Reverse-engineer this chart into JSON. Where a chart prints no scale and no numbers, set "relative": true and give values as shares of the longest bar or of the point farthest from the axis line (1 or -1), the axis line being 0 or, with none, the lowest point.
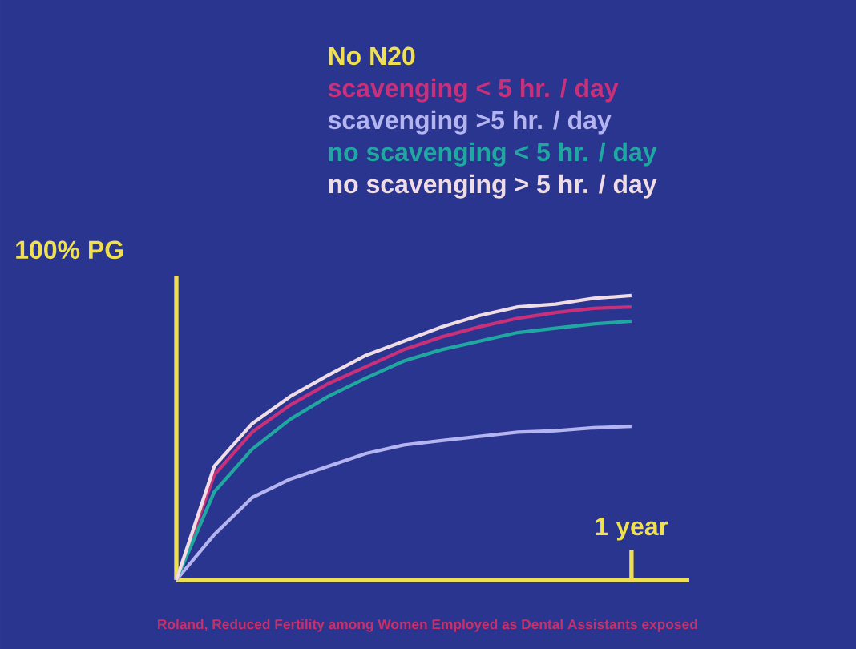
{
  "chart_data": {
    "type": "line",
    "relative": true,
    "ylabel": "100% PG",
    "categories": [
      null,
      null,
      null,
      null,
      null,
      null,
      null,
      null,
      null,
      null,
      null,
      null,
      null
    ],
    "series": [
      {
        "name": "scavenging < 5 hr. / day",
        "color": "#c8307a",
        "values": [
          0,
          0.37,
          0.52,
          0.615,
          0.69,
          0.75,
          0.81,
          0.855,
          0.89,
          0.92,
          0.94,
          0.955,
          0.96
        ]
      },
      {
        "name": "scavenging >5 hr. / day",
        "color": "#b4b4f0",
        "values": [
          0,
          0.16,
          0.29,
          0.355,
          0.4,
          0.445,
          0.475,
          0.49,
          0.505,
          0.52,
          0.525,
          0.535,
          0.54
        ]
      },
      {
        "name": "no scavenging < 5 hr. / day",
        "color": "#20a8a0",
        "values": [
          0,
          0.31,
          0.46,
          0.565,
          0.645,
          0.71,
          0.77,
          0.81,
          0.84,
          0.87,
          0.885,
          0.9,
          0.91
        ]
      },
      {
        "name": "no scavenging > 5 hr. / day",
        "color": "#f0dce4",
        "values": [
          0,
          0.4,
          0.55,
          0.645,
          0.72,
          0.79,
          0.84,
          0.89,
          0.93,
          0.96,
          0.97,
          0.99,
          1.0
        ]
      }
    ],
    "annotations": [
      "No N20",
      "1 year",
      "Roland, Reduced Fertility among Women Employed as Dental Assistants exposed"
    ]
  }
}
